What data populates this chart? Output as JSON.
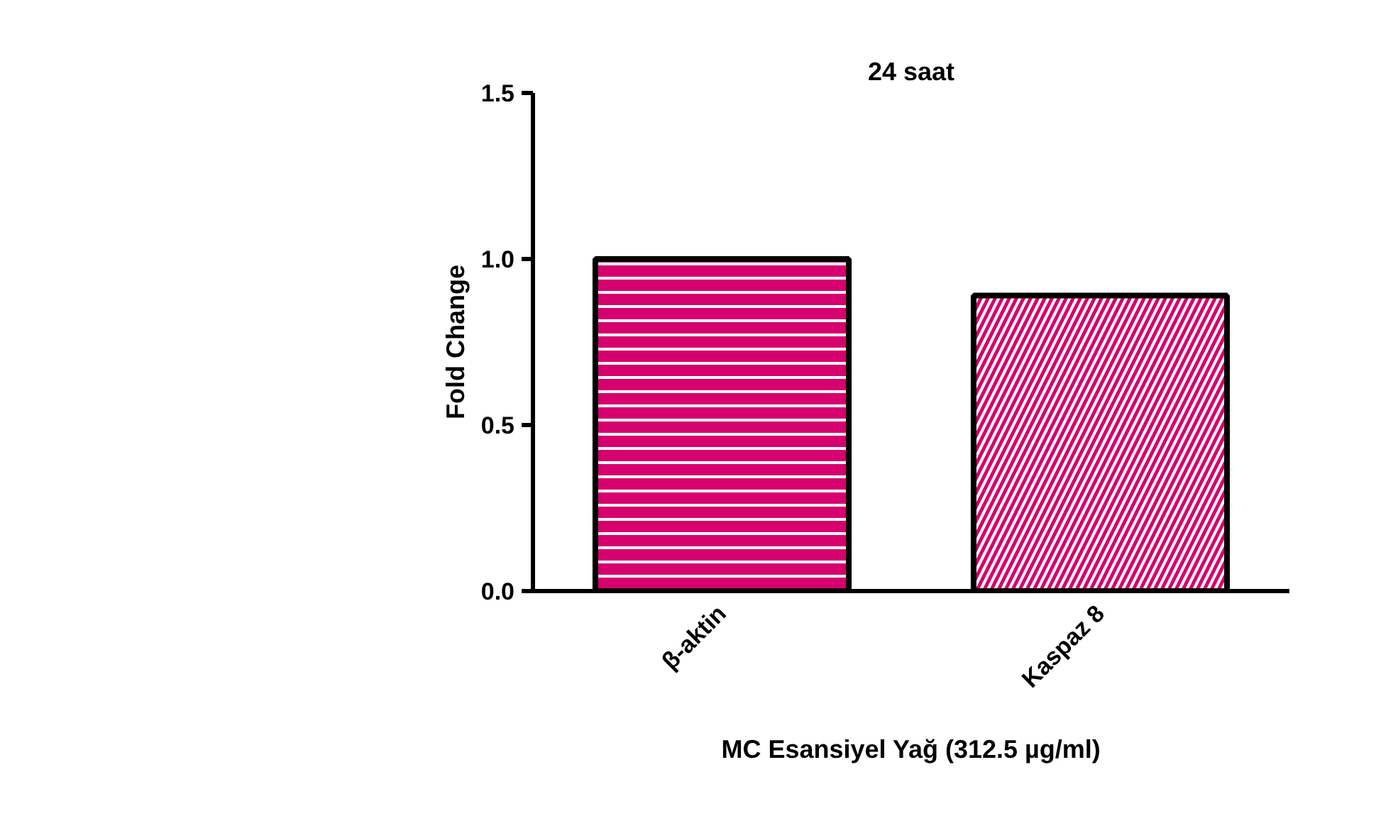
{
  "chart_data": {
    "type": "bar",
    "title": "24 saat",
    "xlabel": "MC Esansiyel Yağ (312.5 µg/ml)",
    "ylabel": "Fold Change",
    "categories": [
      "β-aktin",
      "Kaspaz 8"
    ],
    "values": [
      1.0,
      0.89
    ],
    "colors": [
      "#d6006e",
      "#d6006e"
    ],
    "ylim": [
      0,
      1.5
    ],
    "yticks": [
      {
        "value": 0,
        "label": "0.0"
      },
      {
        "value": 0.5,
        "label": "0.5"
      },
      {
        "value": 1.0,
        "label": "1.0"
      },
      {
        "value": 1.5,
        "label": "1.5"
      }
    ],
    "grid": false
  }
}
